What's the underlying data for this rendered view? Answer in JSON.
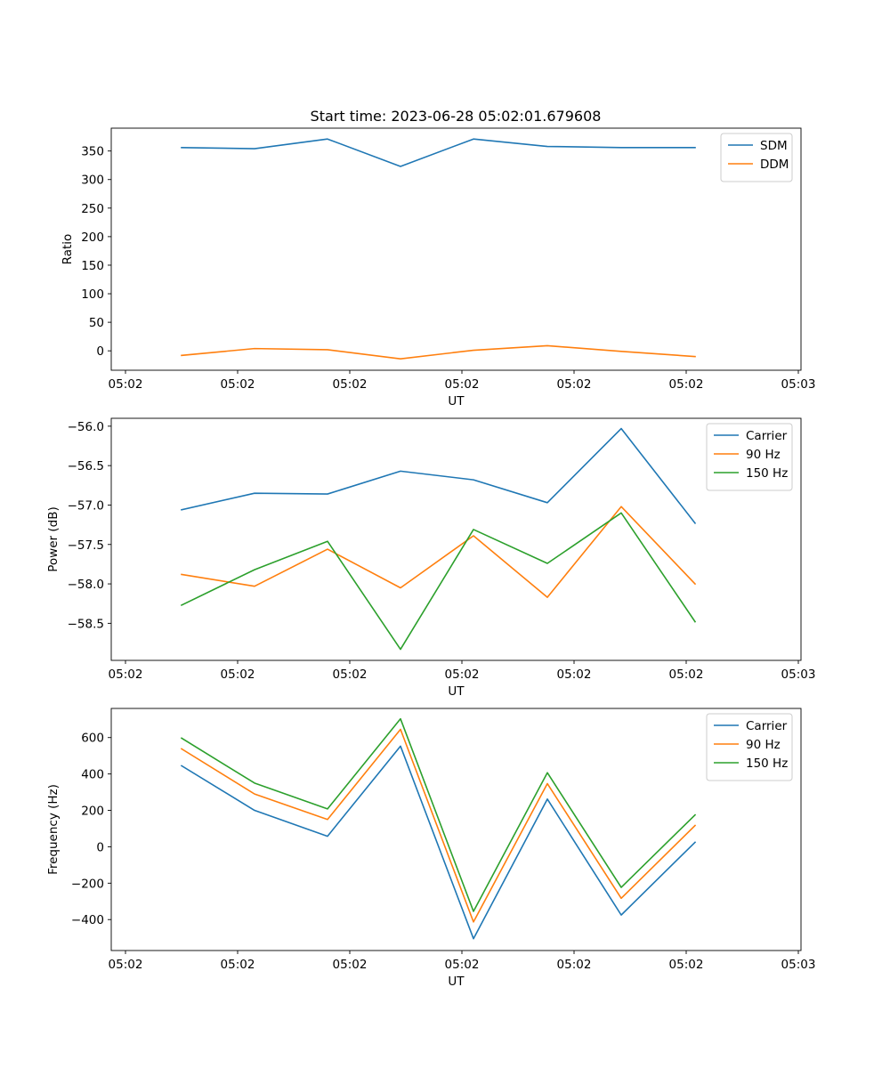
{
  "figure": {
    "title": "Start time: 2023-06-28 05:02:01.679608"
  },
  "chart_data": [
    {
      "type": "line",
      "title": "Start time: 2023-06-28 05:02:01.679608",
      "xlabel": "UT",
      "ylabel": "Ratio",
      "xtick_labels": [
        "05:02",
        "05:02",
        "05:02",
        "05:02",
        "05:02",
        "05:02",
        "05:03"
      ],
      "yticks": [
        0,
        50,
        100,
        150,
        200,
        250,
        300,
        350
      ],
      "ylim": [
        -34,
        390
      ],
      "grid": false,
      "legend": "top-right",
      "series": [
        {
          "name": "SDM",
          "color": "#1f77b4",
          "values": [
            356,
            354,
            371,
            323,
            371,
            358,
            356,
            356
          ]
        },
        {
          "name": "DDM",
          "color": "#ff7f0e",
          "values": [
            -8,
            4,
            2,
            -14,
            1,
            9,
            -1,
            -10
          ]
        }
      ]
    },
    {
      "type": "line",
      "xlabel": "UT",
      "ylabel": "Power (dB)",
      "xtick_labels": [
        "05:02",
        "05:02",
        "05:02",
        "05:02",
        "05:02",
        "05:02",
        "05:03"
      ],
      "yticks": [
        -58.5,
        -58.0,
        -57.5,
        -57.0,
        -56.5,
        -56.0
      ],
      "ylim": [
        -58.97,
        -55.9
      ],
      "grid": false,
      "legend": "top-right",
      "series": [
        {
          "name": "Carrier",
          "color": "#1f77b4",
          "values": [
            -57.06,
            -56.85,
            -56.86,
            -56.57,
            -56.68,
            -56.97,
            -56.03,
            -57.23
          ]
        },
        {
          "name": "90 Hz",
          "color": "#ff7f0e",
          "values": [
            -57.88,
            -58.03,
            -57.56,
            -58.05,
            -57.39,
            -58.17,
            -57.02,
            -58.0
          ]
        },
        {
          "name": "150 Hz",
          "color": "#2ca02c",
          "values": [
            -58.27,
            -57.82,
            -57.46,
            -58.83,
            -57.31,
            -57.74,
            -57.1,
            -58.48
          ]
        }
      ]
    },
    {
      "type": "line",
      "xlabel": "UT",
      "ylabel": "Frequency (Hz)",
      "xtick_labels": [
        "05:02",
        "05:02",
        "05:02",
        "05:02",
        "05:02",
        "05:02",
        "05:03"
      ],
      "yticks": [
        -400,
        -200,
        0,
        200,
        400,
        600
      ],
      "ylim": [
        -570,
        760
      ],
      "grid": false,
      "legend": "top-right",
      "series": [
        {
          "name": "Carrier",
          "color": "#1f77b4",
          "values": [
            445,
            200,
            58,
            553,
            -505,
            262,
            -375,
            25
          ]
        },
        {
          "name": "90 Hz",
          "color": "#ff7f0e",
          "values": [
            538,
            290,
            150,
            645,
            -413,
            347,
            -283,
            117
          ]
        },
        {
          "name": "150 Hz",
          "color": "#2ca02c",
          "values": [
            597,
            350,
            208,
            703,
            -355,
            407,
            -223,
            175
          ]
        }
      ]
    }
  ]
}
